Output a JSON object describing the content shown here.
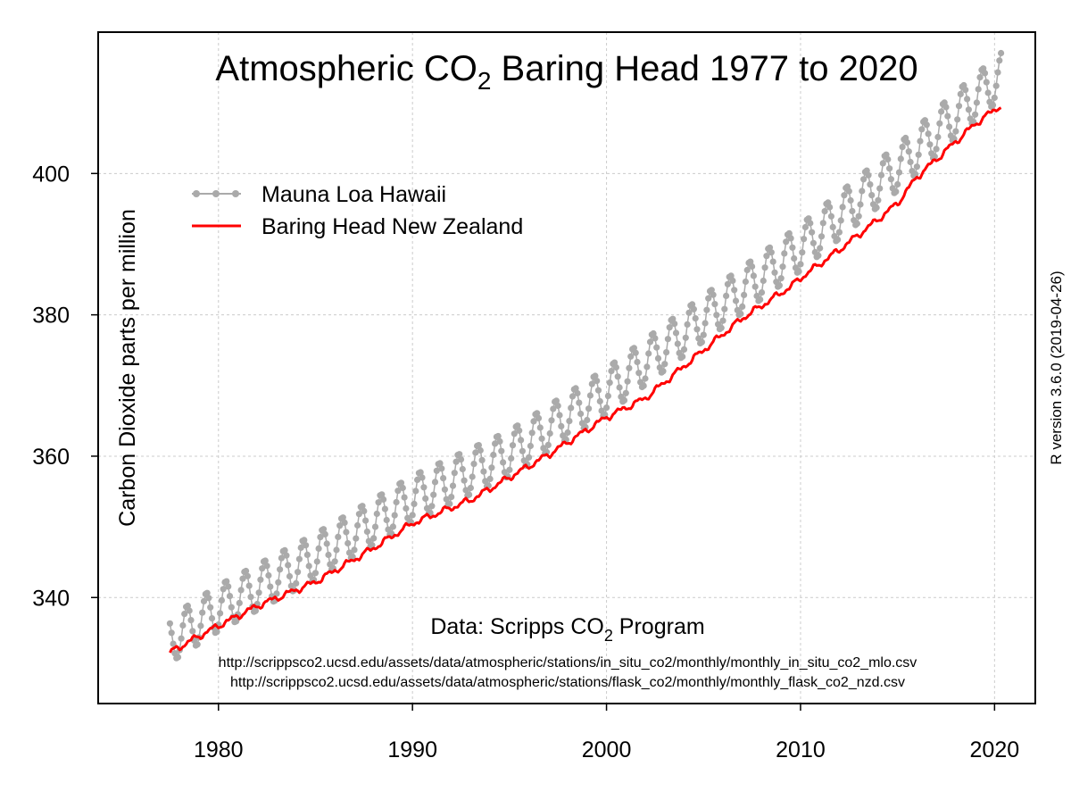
{
  "chart_data": {
    "type": "line",
    "title": {
      "main": "Atmospheric CO",
      "sub": "2",
      "rest": " Baring Head 1977 to 2020"
    },
    "xlabel": "",
    "ylabel": "Carbon Dioxide parts per million",
    "xlim": [
      1973.8,
      2022.1
    ],
    "ylim": [
      325,
      420
    ],
    "x_ticks": [
      1980,
      1990,
      2000,
      2010,
      2020
    ],
    "y_ticks": [
      340,
      360,
      380,
      400
    ],
    "grid": true,
    "legend_position": "top-left",
    "legend": [
      {
        "name": "Mauna Loa Hawaii",
        "color": "#aaaaaa",
        "style": "line-points"
      },
      {
        "name": "Baring Head New Zealand",
        "color": "#ff0000",
        "style": "line"
      }
    ],
    "source": {
      "main": "Data: Scripps CO",
      "sub": "2",
      "rest": " Program"
    },
    "urls": [
      "http://scrippsco2.ucsd.edu/assets/data/atmospheric/stations/in_situ_co2/monthly/monthly_in_situ_co2_mlo.csv",
      "http://scrippsco2.ucsd.edu/assets/data/atmospheric/stations/flask_co2/monthly/monthly_flask_co2_nzd.csv"
    ],
    "r_version": "R version 3.6.0 (2019-04-26)",
    "series": [
      {
        "name": "Mauna Loa Hawaii",
        "color": "#aaaaaa",
        "model": "seasonal",
        "start": 1977.5,
        "end": 2020.4,
        "step": 0.0833333,
        "trend_x": [
          1977.5,
          1980,
          1985,
          1990,
          1995,
          2000,
          2005,
          2010,
          2015,
          2018,
          2020.4
        ],
        "trend_y": [
          334.0,
          338.5,
          345.8,
          354.0,
          360.4,
          369.2,
          379.5,
          389.5,
          400.8,
          408.3,
          414.0
        ],
        "seasonal_amplitude": 3.3,
        "seasonal_peak_month": 4.5
      },
      {
        "name": "Baring Head New Zealand",
        "color": "#ff0000",
        "model": "smooth",
        "start": 1977.5,
        "end": 2020.4,
        "step": 0.0833333,
        "trend_x": [
          1977.5,
          1978.5,
          1980,
          1982,
          1985,
          1988,
          1990,
          1993,
          1995,
          1997,
          2000,
          2002,
          2005,
          2007,
          2009.5,
          2010,
          2012,
          2014,
          2015,
          2016,
          2017,
          2018,
          2019,
          2020.4
        ],
        "trend_y": [
          332.2,
          333.8,
          336.0,
          338.8,
          342.2,
          347.0,
          350.5,
          353.8,
          357.0,
          360.2,
          365.5,
          368.2,
          375.0,
          379.5,
          384.0,
          385.2,
          389.2,
          393.5,
          395.8,
          399.5,
          402.0,
          404.5,
          407.0,
          409.8
        ],
        "seasonal_amplitude": 0.35,
        "seasonal_peak_month": 8.0
      }
    ]
  }
}
